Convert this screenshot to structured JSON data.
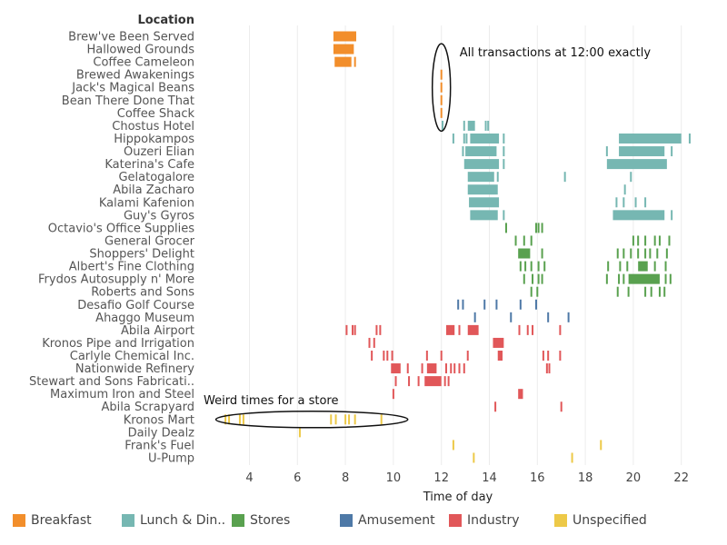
{
  "chart_data": {
    "type": "scatter",
    "header": "Location",
    "xlabel": "Time of day",
    "xlim": [
      2.5,
      23.5
    ],
    "xticks": [
      4,
      6,
      8,
      10,
      12,
      14,
      16,
      18,
      20,
      22
    ],
    "tick_labels": [
      "4",
      "6",
      "8",
      "10",
      "12",
      "14",
      "16",
      "18",
      "20",
      "22"
    ],
    "categories": [
      {
        "name": "Breakfast",
        "label": "Breakfast",
        "color": "#f28e2b"
      },
      {
        "name": "Lunch",
        "label": "Lunch & Din..",
        "color": "#76b7b2"
      },
      {
        "name": "Stores",
        "label": "Stores",
        "color": "#59a14f"
      },
      {
        "name": "Amusement",
        "label": "Amusement",
        "color": "#4e79a7"
      },
      {
        "name": "Industry",
        "label": "Industry",
        "color": "#e15759"
      },
      {
        "name": "Unspecified",
        "label": "Unspecified",
        "color": "#edc948"
      }
    ],
    "locations": [
      {
        "name": "Brew've Been Served",
        "category": "Breakfast",
        "spans": [
          [
            7.5,
            8.45
          ]
        ],
        "times": []
      },
      {
        "name": "Hallowed Grounds",
        "category": "Breakfast",
        "spans": [
          [
            7.5,
            8.35
          ]
        ],
        "times": []
      },
      {
        "name": "Coffee Cameleon",
        "category": "Breakfast",
        "spans": [
          [
            7.55,
            8.25
          ]
        ],
        "times": [
          8.4
        ]
      },
      {
        "name": "Brewed Awakenings",
        "category": "Breakfast",
        "spans": [],
        "times": [
          12.0
        ]
      },
      {
        "name": "Jack's Magical Beans",
        "category": "Breakfast",
        "spans": [],
        "times": [
          12.0
        ]
      },
      {
        "name": "Bean There Done That",
        "category": "Breakfast",
        "spans": [],
        "times": [
          12.0
        ]
      },
      {
        "name": "Coffee Shack",
        "category": "Breakfast",
        "spans": [],
        "times": [
          12.0
        ]
      },
      {
        "name": "Chostus Hotel",
        "category": "Lunch",
        "spans": [
          [
            13.1,
            13.4
          ]
        ],
        "times": [
          12.05,
          12.95,
          13.85,
          13.95
        ]
      },
      {
        "name": "Hippokampos",
        "category": "Lunch",
        "spans": [
          [
            13.2,
            14.4
          ],
          [
            19.4,
            22.0
          ]
        ],
        "times": [
          12.5,
          12.95,
          13.05,
          14.6,
          22.35
        ]
      },
      {
        "name": "Ouzeri Elian",
        "category": "Lunch",
        "spans": [
          [
            13.0,
            14.3
          ],
          [
            19.4,
            21.3
          ]
        ],
        "times": [
          12.9,
          14.6,
          18.9,
          21.6
        ]
      },
      {
        "name": "Katerina's Cafe",
        "category": "Lunch",
        "spans": [
          [
            12.95,
            14.4
          ],
          [
            18.9,
            21.4
          ]
        ],
        "times": [
          14.6
        ]
      },
      {
        "name": "Gelatogalore",
        "category": "Lunch",
        "spans": [
          [
            13.1,
            14.2
          ]
        ],
        "times": [
          14.35,
          17.15,
          19.9
        ]
      },
      {
        "name": "Abila Zacharo",
        "category": "Lunch",
        "spans": [
          [
            13.1,
            14.35
          ]
        ],
        "times": [
          19.65
        ]
      },
      {
        "name": "Kalami Kafenion",
        "category": "Lunch",
        "spans": [
          [
            13.15,
            14.4
          ]
        ],
        "times": [
          19.3,
          19.6,
          20.1,
          20.5
        ]
      },
      {
        "name": "Guy's Gyros",
        "category": "Lunch",
        "spans": [
          [
            13.2,
            14.35
          ],
          [
            19.15,
            21.3
          ]
        ],
        "times": [
          14.6,
          21.6
        ]
      },
      {
        "name": "Octavio's Office Supplies",
        "category": "Stores",
        "spans": [],
        "times": [
          14.7,
          15.95,
          16.05,
          16.2
        ]
      },
      {
        "name": "General Grocer",
        "category": "Stores",
        "spans": [],
        "times": [
          15.1,
          15.45,
          15.75,
          20.0,
          20.2,
          20.5,
          20.9,
          21.1,
          21.5
        ]
      },
      {
        "name": "Shoppers' Delight",
        "category": "Stores",
        "spans": [
          [
            15.2,
            15.7
          ]
        ],
        "times": [
          16.2,
          19.35,
          19.6,
          19.9,
          20.2,
          20.5,
          20.7,
          21.0,
          21.4
        ]
      },
      {
        "name": "Albert's Fine Clothing",
        "category": "Stores",
        "spans": [
          [
            20.2,
            20.6
          ]
        ],
        "times": [
          15.3,
          15.5,
          15.75,
          16.05,
          16.3,
          18.95,
          19.45,
          19.75,
          20.9,
          21.35
        ]
      },
      {
        "name": "Frydos Autosupply n' More",
        "category": "Stores",
        "spans": [
          [
            19.8,
            21.1
          ]
        ],
        "times": [
          15.45,
          15.8,
          16.05,
          16.2,
          18.9,
          19.4,
          19.6,
          21.35,
          21.55
        ]
      },
      {
        "name": "Roberts and Sons",
        "category": "Stores",
        "spans": [],
        "times": [
          15.75,
          16.0,
          19.35,
          19.8,
          20.5,
          20.75,
          21.1,
          21.3
        ]
      },
      {
        "name": "Desafio Golf Course",
        "category": "Amusement",
        "spans": [],
        "times": [
          12.7,
          12.9,
          13.8,
          14.3,
          15.3,
          15.95
        ]
      },
      {
        "name": "Ahaggo Museum",
        "category": "Amusement",
        "spans": [],
        "times": [
          13.4,
          14.9,
          16.45,
          17.3
        ]
      },
      {
        "name": "Abila Airport",
        "category": "Industry",
        "spans": [
          [
            12.2,
            12.55
          ],
          [
            13.1,
            13.55
          ]
        ],
        "times": [
          8.05,
          8.3,
          8.4,
          9.3,
          9.45,
          12.75,
          15.25,
          15.6,
          15.8,
          16.95
        ]
      },
      {
        "name": "Kronos Pipe and Irrigation",
        "category": "Industry",
        "spans": [
          [
            14.15,
            14.6
          ]
        ],
        "times": [
          9.0,
          9.2
        ]
      },
      {
        "name": "Carlyle Chemical Inc.",
        "category": "Industry",
        "spans": [
          [
            14.35,
            14.55
          ]
        ],
        "times": [
          9.1,
          9.6,
          9.75,
          9.95,
          11.4,
          12.0,
          13.1,
          16.25,
          16.45,
          16.95
        ]
      },
      {
        "name": "Nationwide Refinery",
        "category": "Industry",
        "spans": [
          [
            9.9,
            10.3
          ],
          [
            11.4,
            11.8
          ]
        ],
        "times": [
          10.6,
          11.2,
          12.2,
          12.4,
          12.55,
          12.75,
          12.95,
          16.4,
          16.5
        ]
      },
      {
        "name": "Stewart and Sons Fabricati..",
        "category": "Industry",
        "spans": [
          [
            11.3,
            12.0
          ]
        ],
        "times": [
          10.1,
          10.65,
          11.05,
          12.15,
          12.3
        ]
      },
      {
        "name": "Maximum Iron and Steel",
        "category": "Industry",
        "spans": [
          [
            15.2,
            15.4
          ]
        ],
        "times": [
          10.0
        ]
      },
      {
        "name": "Abila Scrapyard",
        "category": "Industry",
        "spans": [],
        "times": [
          14.25,
          17.0
        ]
      },
      {
        "name": "Kronos Mart",
        "category": "Unspecified",
        "spans": [],
        "times": [
          3.0,
          3.15,
          3.6,
          3.75,
          7.4,
          7.6,
          8.0,
          8.15,
          8.4,
          9.5
        ]
      },
      {
        "name": "Daily Dealz",
        "category": "Unspecified",
        "spans": [],
        "times": [
          6.1
        ]
      },
      {
        "name": "Frank's Fuel",
        "category": "Unspecified",
        "spans": [],
        "times": [
          12.5,
          18.65
        ]
      },
      {
        "name": "U-Pump",
        "category": "Unspecified",
        "spans": [],
        "times": [
          13.35,
          17.45
        ]
      }
    ],
    "annotations": [
      {
        "text": "All transactions at 12:00 exactly",
        "x": 12.0,
        "row_from": 2,
        "row_to": 6
      },
      {
        "text": "Weird times for a store",
        "x_from": 2.6,
        "x_to": 10.6,
        "row": 30
      }
    ],
    "legend": "bottom"
  }
}
